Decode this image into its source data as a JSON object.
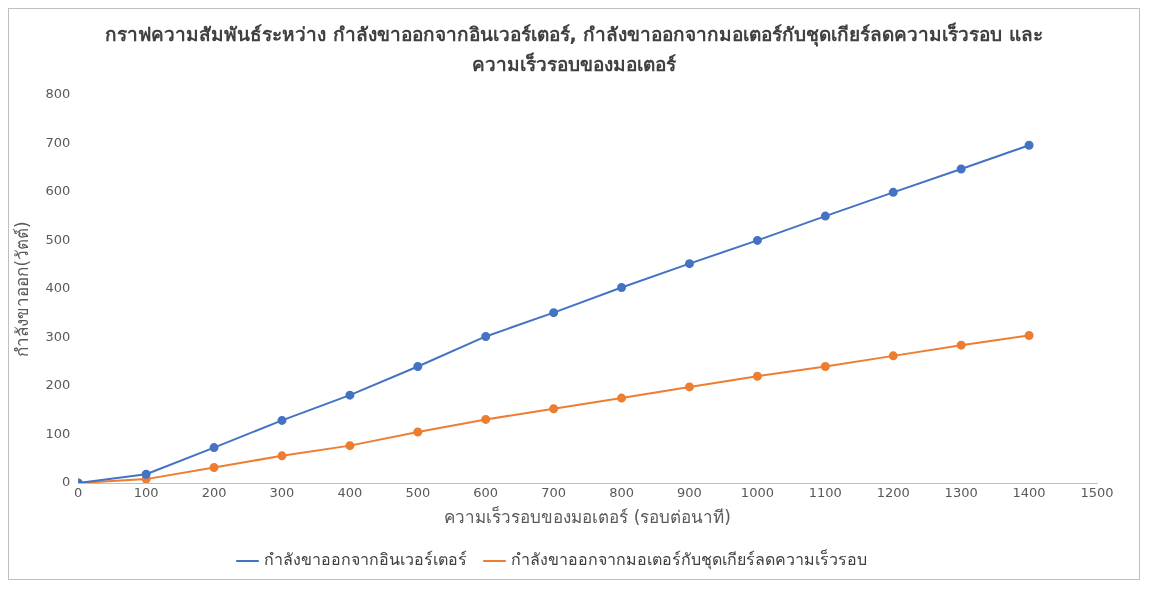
{
  "chart_data": {
    "type": "line",
    "title": "กราฟความสัมพันธ์ระหว่าง กำลังขาออกจากอินเวอร์เตอร์, กำลังขาออกจากมอเตอร์กับชุดเกียร์ลดความเร็วรอบ และ ความเร็วรอบของมอเตอร์",
    "xlabel": "ความเร็วรอบของมอเตอร์ (รอบต่อนาที)",
    "ylabel": "กำลังขาออก(วัตต์)",
    "x": [
      0,
      100,
      200,
      300,
      400,
      500,
      600,
      700,
      800,
      900,
      1000,
      1100,
      1200,
      1300,
      1400
    ],
    "series": [
      {
        "name": "กำลังขาออกจากอินเวอร์เตอร์",
        "color": "#4472c4",
        "values": [
          0,
          18,
          73,
          129,
          181,
          240,
          302,
          351,
          403,
          452,
          500,
          550,
          599,
          647,
          696
        ]
      },
      {
        "name": "กำลังขาออกจากมอเตอร์กับชุดเกียร์ลดความเร็วรอบ",
        "color": "#ed7d31",
        "values": [
          0,
          8,
          32,
          56,
          77,
          105,
          131,
          153,
          175,
          198,
          220,
          240,
          262,
          284,
          304
        ]
      }
    ],
    "xlim": [
      0,
      1500
    ],
    "xticks": [
      0,
      100,
      200,
      300,
      400,
      500,
      600,
      700,
      800,
      900,
      1000,
      1100,
      1200,
      1300,
      1400,
      1500
    ],
    "ylim": [
      0,
      800
    ],
    "yticks": [
      0,
      100,
      200,
      300,
      400,
      500,
      600,
      700,
      800
    ],
    "grid": false,
    "legend": "bottom",
    "marker": "circle",
    "line_style": "solid"
  }
}
